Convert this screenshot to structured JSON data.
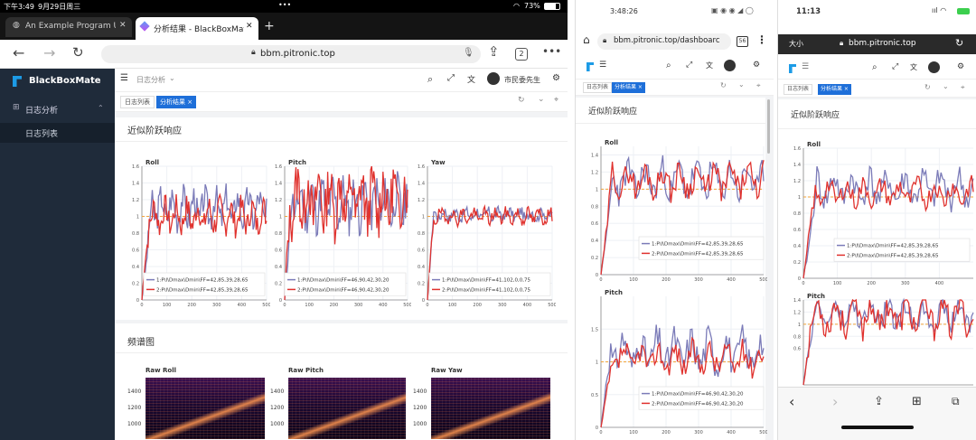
{
  "ipad": {
    "status": {
      "time": "下午3:49",
      "date": "9月29日周三",
      "dots": "•••",
      "battery": "73%"
    },
    "tabs": [
      {
        "title": "An Example Program Us"
      },
      {
        "title": "分析结果 - BlackBoxMate"
      }
    ],
    "address": "bbm.pitronic.top",
    "tab_count": "2",
    "sidebar": {
      "brand": "BlackBoxMate",
      "menu": "日志分析",
      "submenu": "日志列表"
    },
    "header": {
      "breadcrumb": "日志分析",
      "user": "市民委先生"
    },
    "page_tabs": [
      "日志列表",
      "分析结果"
    ],
    "section1": "近似阶跃响应",
    "section2": "频谱图",
    "charts": [
      {
        "title": "Roll",
        "legend": [
          "1:P\\I\\Dmax\\Dmin\\FF=42,85,39,28,65",
          "2:P\\I\\Dmax\\Dmin\\FF=42,85,39,28,65"
        ]
      },
      {
        "title": "Pitch",
        "legend": [
          "1:P\\I\\Dmax\\Dmin\\FF=46,90,42,30,20",
          "2:P\\I\\Dmax\\Dmin\\FF=46,90,42,30,20"
        ]
      },
      {
        "title": "Yaw",
        "legend": [
          "1:P\\I\\Dmax\\Dmin\\FF=41,102,0,0,75",
          "2:P\\I\\Dmax\\Dmin\\FF=41,102,0,0,75"
        ]
      }
    ],
    "spectra": [
      {
        "title": "Raw Roll",
        "ticks": [
          "1400",
          "1200",
          "1000"
        ]
      },
      {
        "title": "Raw Pitch",
        "ticks": [
          "1400",
          "1200",
          "1000"
        ]
      },
      {
        "title": "Raw Yaw",
        "ticks": [
          "1400",
          "1200",
          "1000"
        ]
      }
    ]
  },
  "phone1": {
    "status": {
      "time": "3:48:26"
    },
    "address": "bbm.pitronic.top/dashboarc",
    "tab_count": "56",
    "page_tabs": [
      "日志列表",
      "分析结果"
    ],
    "section1": "近似阶跃响应",
    "roll": {
      "title": "Roll",
      "legend": [
        "1:P\\I\\Dmax\\Dmin\\FF=42,85,39,28,65",
        "2:P\\I\\Dmax\\Dmin\\FF=42,85,39,28,65"
      ]
    },
    "pitch": {
      "title": "Pitch",
      "legend": [
        "1:P\\I\\Dmax\\Dmin\\FF=46,90,42,30,20",
        "2:P\\I\\Dmax\\Dmin\\FF=46,90,42,30,20"
      ]
    }
  },
  "phone2": {
    "status": {
      "time": "11:13"
    },
    "text_size": "大小",
    "address": "bbm.pitronic.top",
    "page_tabs": [
      "日志列表",
      "分析结果"
    ],
    "section1": "近似阶跃响应",
    "roll": {
      "title": "Roll",
      "legend": [
        "1:P\\I\\Dmax\\Dmin\\FF=42,85,39,28,65",
        "2:P\\I\\Dmax\\Dmin\\FF=42,85,39,28,65"
      ]
    },
    "pitch": {
      "title": "Pitch"
    }
  },
  "colors": {
    "series1": "#7b7bb8",
    "series2": "#e0322e",
    "setpoint": "#f2a33a",
    "sidebar": "#1f2b3a",
    "brand": "#1c9be6",
    "active_tab": "#1e6fd9"
  }
}
